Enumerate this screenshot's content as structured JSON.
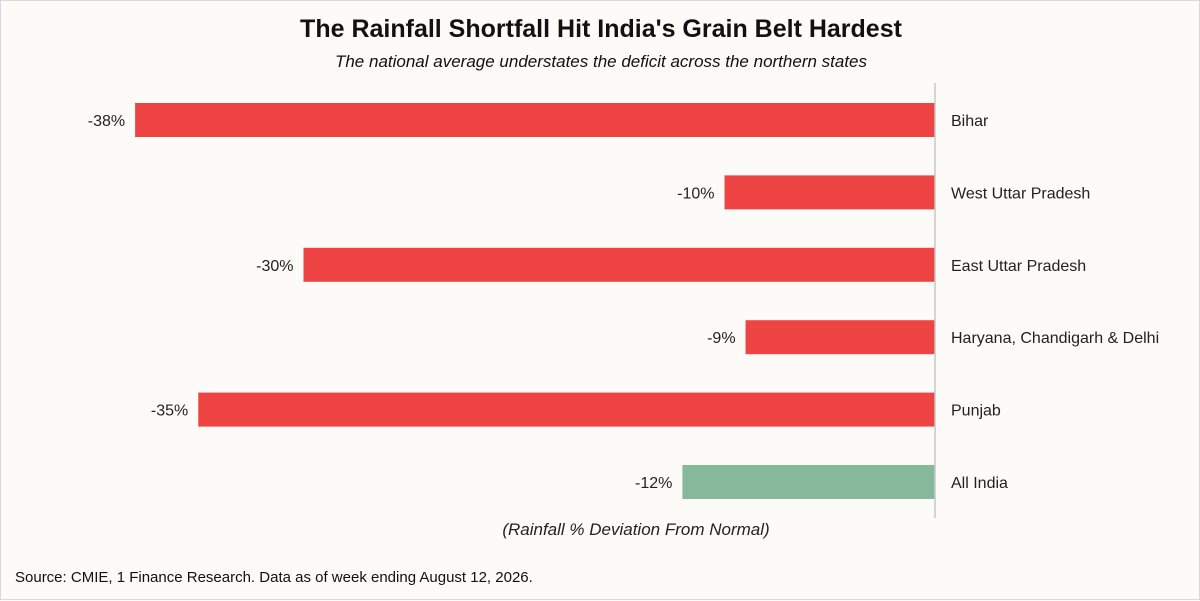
{
  "title": "The Rainfall Shortfall Hit India's Grain Belt Hardest",
  "subtitle": "The national average understates the deficit across the northern states",
  "source": "Source: CMIE, 1 Finance Research. Data as of week ending August 12, 2026.",
  "colors": {
    "deficit": "#ef4444",
    "national": "#86b89b",
    "axis": "#c8c8c8"
  },
  "chart_data": {
    "type": "bar",
    "orientation": "horizontal",
    "categories": [
      "Bihar",
      "West Uttar Pradesh",
      "East Uttar Pradesh",
      "Haryana, Chandigarh & Delhi",
      "Punjab",
      "All India"
    ],
    "values": [
      -38,
      -10,
      -30,
      -9,
      -35,
      -12
    ],
    "value_labels": [
      "-38%",
      "-10%",
      "-30%",
      "-9%",
      "-35%",
      "-12%"
    ],
    "highlight": "All India",
    "xlabel": "(Rainfall % Deviation From Normal)",
    "xlim": [
      -40,
      0
    ],
    "grid": false,
    "legend": "none"
  }
}
